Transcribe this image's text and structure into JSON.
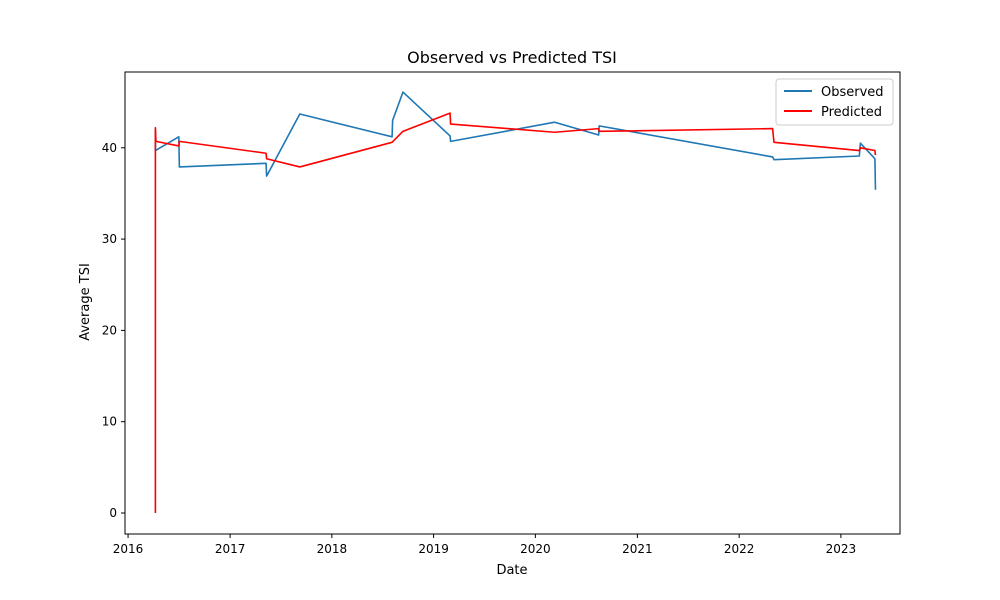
{
  "chart_data": {
    "type": "line",
    "title": "Observed vs Predicted TSI",
    "xlabel": "Date",
    "ylabel": "Average TSI",
    "x_ticks": [
      "2016",
      "2017",
      "2018",
      "2019",
      "2020",
      "2021",
      "2022",
      "2023"
    ],
    "y_ticks": [
      0,
      10,
      20,
      30,
      40
    ],
    "xlim": [
      "2015-12-21",
      "2023-08-01"
    ],
    "ylim": [
      -2.3,
      48.3
    ],
    "grid": false,
    "legend_position": "upper-right",
    "series": [
      {
        "name": "Observed",
        "color": "#1f77b4",
        "points": [
          [
            "2016-04-08",
            42.0
          ],
          [
            "2016-04-08",
            39.7
          ],
          [
            "2016-07-01",
            41.2
          ],
          [
            "2016-07-03",
            37.9
          ],
          [
            "2017-05-10",
            38.3
          ],
          [
            "2017-05-12",
            36.9
          ],
          [
            "2017-09-08",
            43.7
          ],
          [
            "2018-08-05",
            41.2
          ],
          [
            "2018-08-07",
            43.0
          ],
          [
            "2018-09-13",
            46.1
          ],
          [
            "2019-03-01",
            41.3
          ],
          [
            "2019-03-03",
            40.7
          ],
          [
            "2020-03-10",
            42.8
          ],
          [
            "2020-08-15",
            41.4
          ],
          [
            "2020-08-17",
            42.4
          ],
          [
            "2022-05-01",
            39.0
          ],
          [
            "2022-05-06",
            38.7
          ],
          [
            "2023-03-08",
            39.1
          ],
          [
            "2023-03-12",
            40.5
          ],
          [
            "2023-05-03",
            38.8
          ],
          [
            "2023-05-05",
            35.4
          ]
        ]
      },
      {
        "name": "Predicted",
        "color": "#ff0000",
        "points": [
          [
            "2016-04-08",
            0.0
          ],
          [
            "2016-04-08",
            42.2
          ],
          [
            "2016-04-10",
            40.7
          ],
          [
            "2016-07-01",
            40.2
          ],
          [
            "2016-07-03",
            40.7
          ],
          [
            "2017-05-10",
            39.4
          ],
          [
            "2017-05-12",
            38.8
          ],
          [
            "2017-09-08",
            37.9
          ],
          [
            "2018-08-05",
            40.6
          ],
          [
            "2018-09-13",
            41.8
          ],
          [
            "2019-03-01",
            43.8
          ],
          [
            "2019-03-03",
            42.6
          ],
          [
            "2020-03-10",
            41.7
          ],
          [
            "2020-08-15",
            42.1
          ],
          [
            "2020-08-17",
            41.8
          ],
          [
            "2022-05-01",
            42.1
          ],
          [
            "2022-05-06",
            40.6
          ],
          [
            "2023-03-08",
            39.7
          ],
          [
            "2023-03-12",
            40.0
          ],
          [
            "2023-05-03",
            39.7
          ],
          [
            "2023-05-05",
            39.2
          ]
        ]
      }
    ]
  }
}
